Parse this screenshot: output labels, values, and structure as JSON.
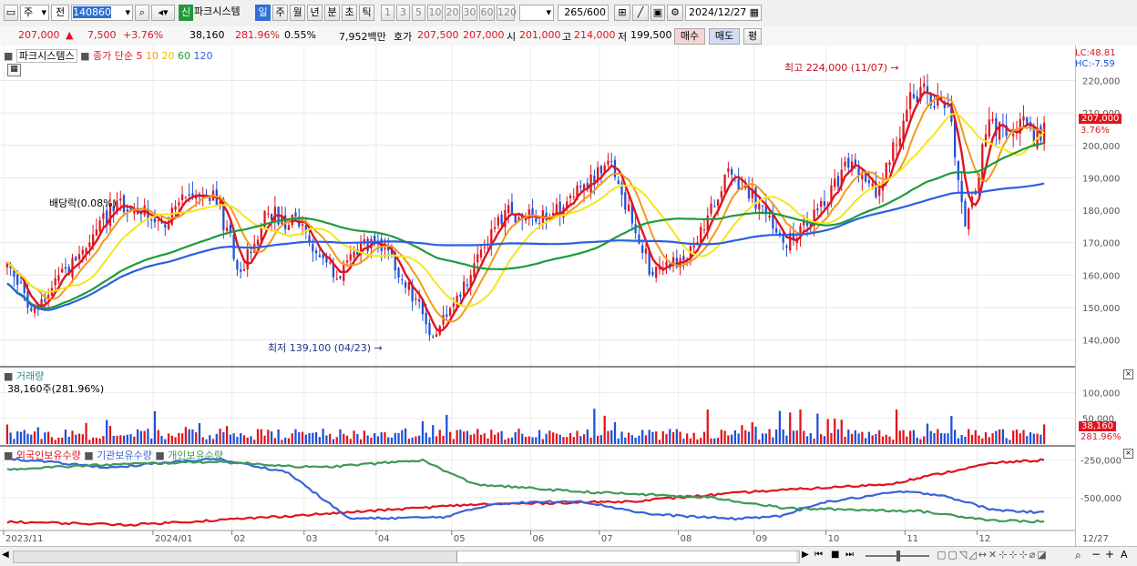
{
  "toolbar": {
    "mode": "주",
    "prev": "전",
    "code": "140860",
    "stock_badge": "신",
    "stock_name": "파크시스템",
    "periods": [
      "일",
      "주",
      "월",
      "년",
      "분",
      "초",
      "틱"
    ],
    "intervals": [
      "1",
      "3",
      "5",
      "10",
      "20",
      "30",
      "60",
      "120"
    ],
    "count": "265",
    "count_total": "/600",
    "date": "2024/12/27"
  },
  "info": {
    "price": "207,000",
    "change": "7,500",
    "change_pct": "+3.76%",
    "volume": "38,160",
    "volume_pct": "281.96%",
    "turnover": "0.55%",
    "amount": "7,952백만",
    "quote_label": "호가",
    "ask": "207,500",
    "bid": "207,000",
    "open_label": "시",
    "open": "201,000",
    "high_label": "고",
    "high": "214,000",
    "low_label": "저",
    "low": "199,500",
    "buy_btn": "매수",
    "sell_btn": "매도",
    "eval_btn": "평"
  },
  "legend": {
    "name": "파크시스템스",
    "ma_label": "종가 단순",
    "ma_periods": [
      "5",
      "10",
      "20",
      "60",
      "120"
    ]
  },
  "price_panel": {
    "lc": "LC:48.81",
    "hc": "HC:-7.59",
    "current_price": "207,000",
    "current_pct": "3.76%",
    "high_annot": "최고 224,000 (11/07)",
    "low_annot": "최저 139,100 (04/23)",
    "dividend_annot": "배당락(0.08%)"
  },
  "volume_panel": {
    "title": "거래량",
    "value": "38,160주(281.96%)",
    "current": "38,160",
    "current_pct": "281.96%"
  },
  "holding_panel": {
    "legends": [
      "외국인보유수량",
      "기관보유수량",
      "개인보유수량"
    ]
  },
  "x_axis_labels": [
    "2023/11",
    "2024/01",
    "02",
    "03",
    "04",
    "05",
    "06",
    "07",
    "08",
    "09",
    "10",
    "11",
    "12",
    "12/27"
  ],
  "colors": {
    "up": "#e0141e",
    "down": "#1f4fd8",
    "ma5": "#e0141e",
    "ma10": "#f29a1a",
    "ma20": "#f5e61b",
    "ma60": "#1f9a3b",
    "ma120": "#2e5fe0",
    "foreign": "#e0141e",
    "institution": "#3a63d8",
    "individual": "#3d9a5a"
  },
  "chart_data": [
    {
      "type": "candlestick",
      "title": "파크시스템스",
      "ylim": [
        132000,
        228000
      ],
      "yticks": [
        140000,
        150000,
        160000,
        170000,
        180000,
        190000,
        200000,
        210000,
        220000
      ],
      "ytick_labels": [
        "140,000",
        "150,000",
        "160,000",
        "170,000",
        "180,000",
        "190,000",
        "200,000",
        "210,000",
        "220,000"
      ],
      "anchors": [
        {
          "date": "2023-11-01",
          "close": 164000
        },
        {
          "date": "2023-11-10",
          "close": 149000
        },
        {
          "date": "2023-11-20",
          "close": 156000
        },
        {
          "date": "2023-12-05",
          "close": 170000
        },
        {
          "date": "2023-12-15",
          "close": 183000
        },
        {
          "date": "2024-01-03",
          "close": 176000
        },
        {
          "date": "2024-01-12",
          "close": 184000
        },
        {
          "date": "2024-01-24",
          "close": 186000
        },
        {
          "date": "2024-02-05",
          "close": 161000
        },
        {
          "date": "2024-02-15",
          "close": 179000
        },
        {
          "date": "2024-02-28",
          "close": 175000
        },
        {
          "date": "2024-03-15",
          "close": 159000
        },
        {
          "date": "2024-03-25",
          "close": 170000
        },
        {
          "date": "2024-04-05",
          "close": 166000
        },
        {
          "date": "2024-04-23",
          "close": 141000
        },
        {
          "date": "2024-05-08",
          "close": 160000
        },
        {
          "date": "2024-05-22",
          "close": 180000
        },
        {
          "date": "2024-06-07",
          "close": 177000
        },
        {
          "date": "2024-06-21",
          "close": 187000
        },
        {
          "date": "2024-07-04",
          "close": 195000
        },
        {
          "date": "2024-07-22",
          "close": 160000
        },
        {
          "date": "2024-08-05",
          "close": 165000
        },
        {
          "date": "2024-08-20",
          "close": 191000
        },
        {
          "date": "2024-09-03",
          "close": 182000
        },
        {
          "date": "2024-09-12",
          "close": 170000
        },
        {
          "date": "2024-09-26",
          "close": 180000
        },
        {
          "date": "2024-10-10",
          "close": 195000
        },
        {
          "date": "2024-10-21",
          "close": 184000
        },
        {
          "date": "2024-11-01",
          "close": 211000
        },
        {
          "date": "2024-11-07",
          "close": 218000
        },
        {
          "date": "2024-11-19",
          "close": 212000
        },
        {
          "date": "2024-11-26",
          "close": 175000
        },
        {
          "date": "2024-12-05",
          "close": 208000
        },
        {
          "date": "2024-12-12",
          "close": 203000
        },
        {
          "date": "2024-12-19",
          "close": 209000
        },
        {
          "date": "2024-12-24",
          "close": 200000
        },
        {
          "date": "2024-12-27",
          "close": 207000
        }
      ],
      "moving_averages": [
        "5",
        "10",
        "20",
        "60",
        "120"
      ],
      "high": {
        "date": "2024-11-07",
        "value": 224000
      },
      "low": {
        "date": "2024-04-23",
        "value": 139100
      }
    },
    {
      "type": "bar",
      "title": "거래량",
      "ylim": [
        0,
        145000
      ],
      "yticks": [
        50000,
        100000
      ],
      "ytick_labels": [
        "50,000",
        "100,000"
      ],
      "last": 38160
    },
    {
      "type": "line",
      "title": "보유수량",
      "ylim": [
        -700000,
        -180000
      ],
      "yticks": [
        -250000,
        -500000
      ],
      "ytick_labels": [
        "-250,000",
        "-500,000"
      ],
      "series": [
        {
          "name": "외국인보유수량",
          "anchors": [
            [
              0,
              -660000
            ],
            [
              0.12,
              -680000
            ],
            [
              0.2,
              -650000
            ],
            [
              0.3,
              -610000
            ],
            [
              0.45,
              -545000
            ],
            [
              0.6,
              -525000
            ],
            [
              0.72,
              -460000
            ],
            [
              0.85,
              -410000
            ],
            [
              0.95,
              -270000
            ],
            [
              1,
              -250000
            ]
          ]
        },
        {
          "name": "기관보유수량",
          "anchors": [
            [
              0,
              -240000
            ],
            [
              0.1,
              -300000
            ],
            [
              0.2,
              -240000
            ],
            [
              0.27,
              -330000
            ],
            [
              0.33,
              -640000
            ],
            [
              0.42,
              -630000
            ],
            [
              0.47,
              -540000
            ],
            [
              0.55,
              -520000
            ],
            [
              0.62,
              -610000
            ],
            [
              0.7,
              -640000
            ],
            [
              0.75,
              -620000
            ],
            [
              0.78,
              -540000
            ],
            [
              0.86,
              -460000
            ],
            [
              0.9,
              -480000
            ],
            [
              0.95,
              -580000
            ],
            [
              1,
              -600000
            ]
          ]
        },
        {
          "name": "개인보유수량",
          "anchors": [
            [
              0,
              -310000
            ],
            [
              0.1,
              -280000
            ],
            [
              0.2,
              -260000
            ],
            [
              0.3,
              -300000
            ],
            [
              0.4,
              -250000
            ],
            [
              0.45,
              -410000
            ],
            [
              0.55,
              -460000
            ],
            [
              0.62,
              -480000
            ],
            [
              0.68,
              -500000
            ],
            [
              0.75,
              -570000
            ],
            [
              0.82,
              -580000
            ],
            [
              0.88,
              -590000
            ],
            [
              0.95,
              -650000
            ],
            [
              1,
              -660000
            ]
          ]
        }
      ]
    }
  ]
}
